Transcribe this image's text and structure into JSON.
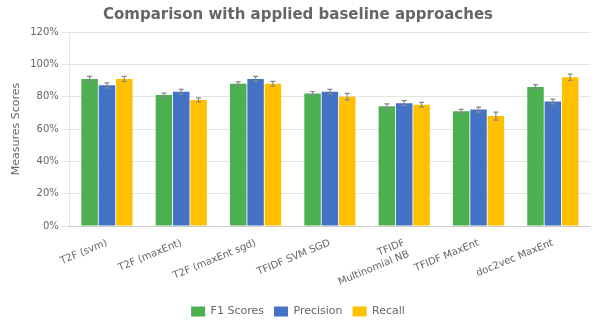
{
  "chart_data": {
    "type": "bar",
    "title": "Comparison with applied baseline approaches",
    "ylabel": "Measures Scores",
    "categories": [
      "T2F (svm)",
      "T2F (maxEnt)",
      "T2F (maxEnt sgd)",
      "TFIDF SVM SGD",
      "TFIDF\nMultinomial NB",
      "TFIDF MaxEnt",
      "doc2vec MaxEnt"
    ],
    "series": [
      {
        "name": "F1 Scores",
        "color": "#4caf50",
        "values": [
          0.91,
          0.81,
          0.88,
          0.82,
          0.74,
          0.71,
          0.86
        ],
        "errors": [
          0.015,
          0.012,
          0.012,
          0.012,
          0.015,
          0.012,
          0.015
        ]
      },
      {
        "name": "Precision",
        "color": "#4472c4",
        "values": [
          0.87,
          0.83,
          0.91,
          0.83,
          0.76,
          0.72,
          0.77
        ],
        "errors": [
          0.015,
          0.015,
          0.015,
          0.015,
          0.015,
          0.015,
          0.015
        ]
      },
      {
        "name": "Recall",
        "color": "#ffc000",
        "values": [
          0.91,
          0.78,
          0.88,
          0.8,
          0.75,
          0.68,
          0.92
        ],
        "errors": [
          0.015,
          0.012,
          0.015,
          0.02,
          0.015,
          0.025,
          0.02
        ]
      }
    ],
    "ylim": [
      0,
      1.2
    ],
    "yticks": [
      {
        "value": 0,
        "label": "0%"
      },
      {
        "value": 0.2,
        "label": "20%"
      },
      {
        "value": 0.4,
        "label": "40%"
      },
      {
        "value": 0.6,
        "label": "60%"
      },
      {
        "value": 0.8,
        "label": "80%"
      },
      {
        "value": 1.0,
        "label": "100%"
      },
      {
        "value": 1.2,
        "label": "120%"
      }
    ],
    "grid": true,
    "legend": "bottom"
  }
}
